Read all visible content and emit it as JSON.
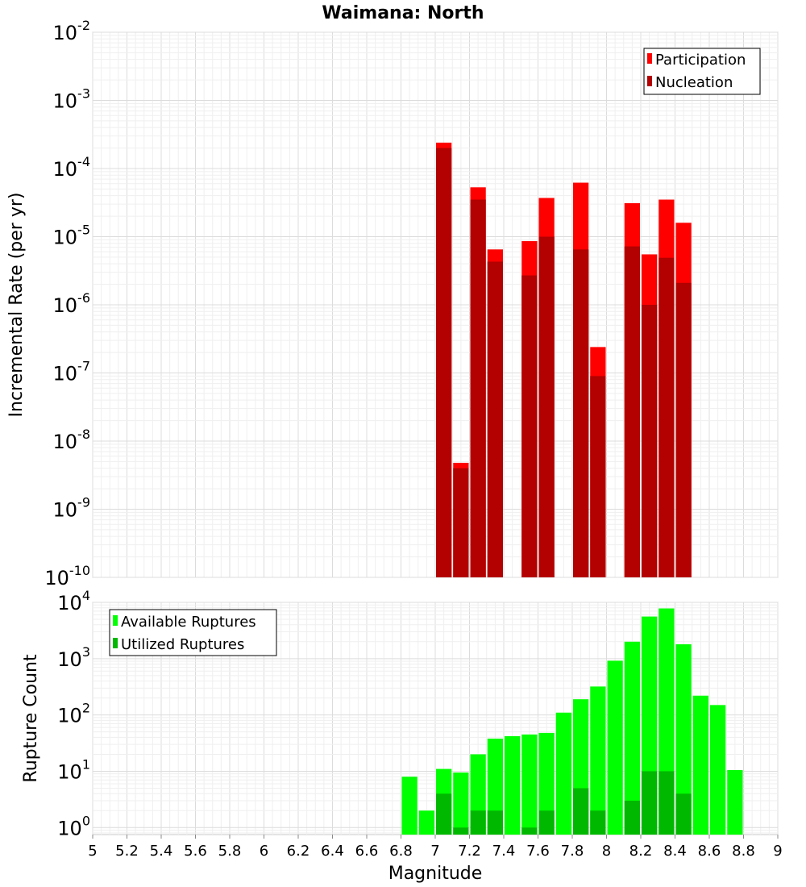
{
  "chart_data": [
    {
      "type": "bar",
      "panel": "top",
      "title": "Waimana: North",
      "xlabel": "Magnitude",
      "ylabel": "Incremental Rate (per yr)",
      "yscale": "log",
      "ylim": [
        1e-10,
        0.01
      ],
      "xlim": [
        5,
        9
      ],
      "grid": true,
      "legend_position": "top-right",
      "yticks": [
        {
          "base": "10",
          "exp": "-10"
        },
        {
          "base": "10",
          "exp": "-9"
        },
        {
          "base": "10",
          "exp": "-8"
        },
        {
          "base": "10",
          "exp": "-7"
        },
        {
          "base": "10",
          "exp": "-6"
        },
        {
          "base": "10",
          "exp": "-5"
        },
        {
          "base": "10",
          "exp": "-4"
        },
        {
          "base": "10",
          "exp": "-3"
        },
        {
          "base": "10",
          "exp": "-2"
        }
      ],
      "x": [
        7.05,
        7.15,
        7.25,
        7.35,
        7.55,
        7.65,
        7.85,
        7.95,
        8.15,
        8.25,
        8.35,
        8.45
      ],
      "series": [
        {
          "name": "Participation",
          "color": "#ff0000",
          "values": [
            0.00024,
            4.8e-09,
            5.3e-05,
            6.5e-06,
            8.6e-06,
            3.7e-05,
            6.2e-05,
            2.4e-07,
            3.1e-05,
            5.5e-06,
            3.5e-05,
            1.6e-05
          ]
        },
        {
          "name": "Nucleation",
          "color": "#b30000",
          "values": [
            0.0002,
            4e-09,
            3.5e-05,
            4.3e-06,
            2.7e-06,
            1e-05,
            6.5e-06,
            9e-08,
            7.2e-06,
            1e-06,
            4.9e-06,
            2.1e-06
          ]
        }
      ]
    },
    {
      "type": "bar",
      "panel": "bottom",
      "xlabel": "Magnitude",
      "ylabel": "Rupture Count",
      "yscale": "log",
      "ylim": [
        0.75,
        10000
      ],
      "xlim": [
        5,
        9
      ],
      "grid": true,
      "legend_position": "top-left",
      "yticks": [
        {
          "base": "10",
          "exp": "0"
        },
        {
          "base": "10",
          "exp": "1"
        },
        {
          "base": "10",
          "exp": "2"
        },
        {
          "base": "10",
          "exp": "3"
        },
        {
          "base": "10",
          "exp": "4"
        }
      ],
      "xticks": [
        "5",
        "5.2",
        "5.4",
        "5.6",
        "5.8",
        "6",
        "6.2",
        "6.4",
        "6.6",
        "6.8",
        "7",
        "7.2",
        "7.4",
        "7.6",
        "7.8",
        "8",
        "8.2",
        "8.4",
        "8.6",
        "8.8",
        "9"
      ],
      "x": [
        6.85,
        6.95,
        7.05,
        7.15,
        7.25,
        7.35,
        7.45,
        7.55,
        7.65,
        7.75,
        7.85,
        7.95,
        8.05,
        8.15,
        8.25,
        8.35,
        8.45,
        8.55,
        8.65,
        8.75
      ],
      "series": [
        {
          "name": "Available Ruptures",
          "color": "#00ff00",
          "values": [
            8,
            2,
            11,
            9.5,
            20,
            38,
            42,
            45,
            48,
            110,
            190,
            320,
            920,
            2000,
            5600,
            7800,
            1800,
            220,
            150,
            10.5
          ]
        },
        {
          "name": "Utilized Ruptures",
          "color": "#00b800",
          "values": [
            null,
            null,
            4,
            1,
            2,
            2,
            null,
            1,
            2,
            null,
            5,
            2,
            null,
            3,
            10,
            10,
            4,
            null,
            null,
            null
          ]
        }
      ]
    }
  ]
}
